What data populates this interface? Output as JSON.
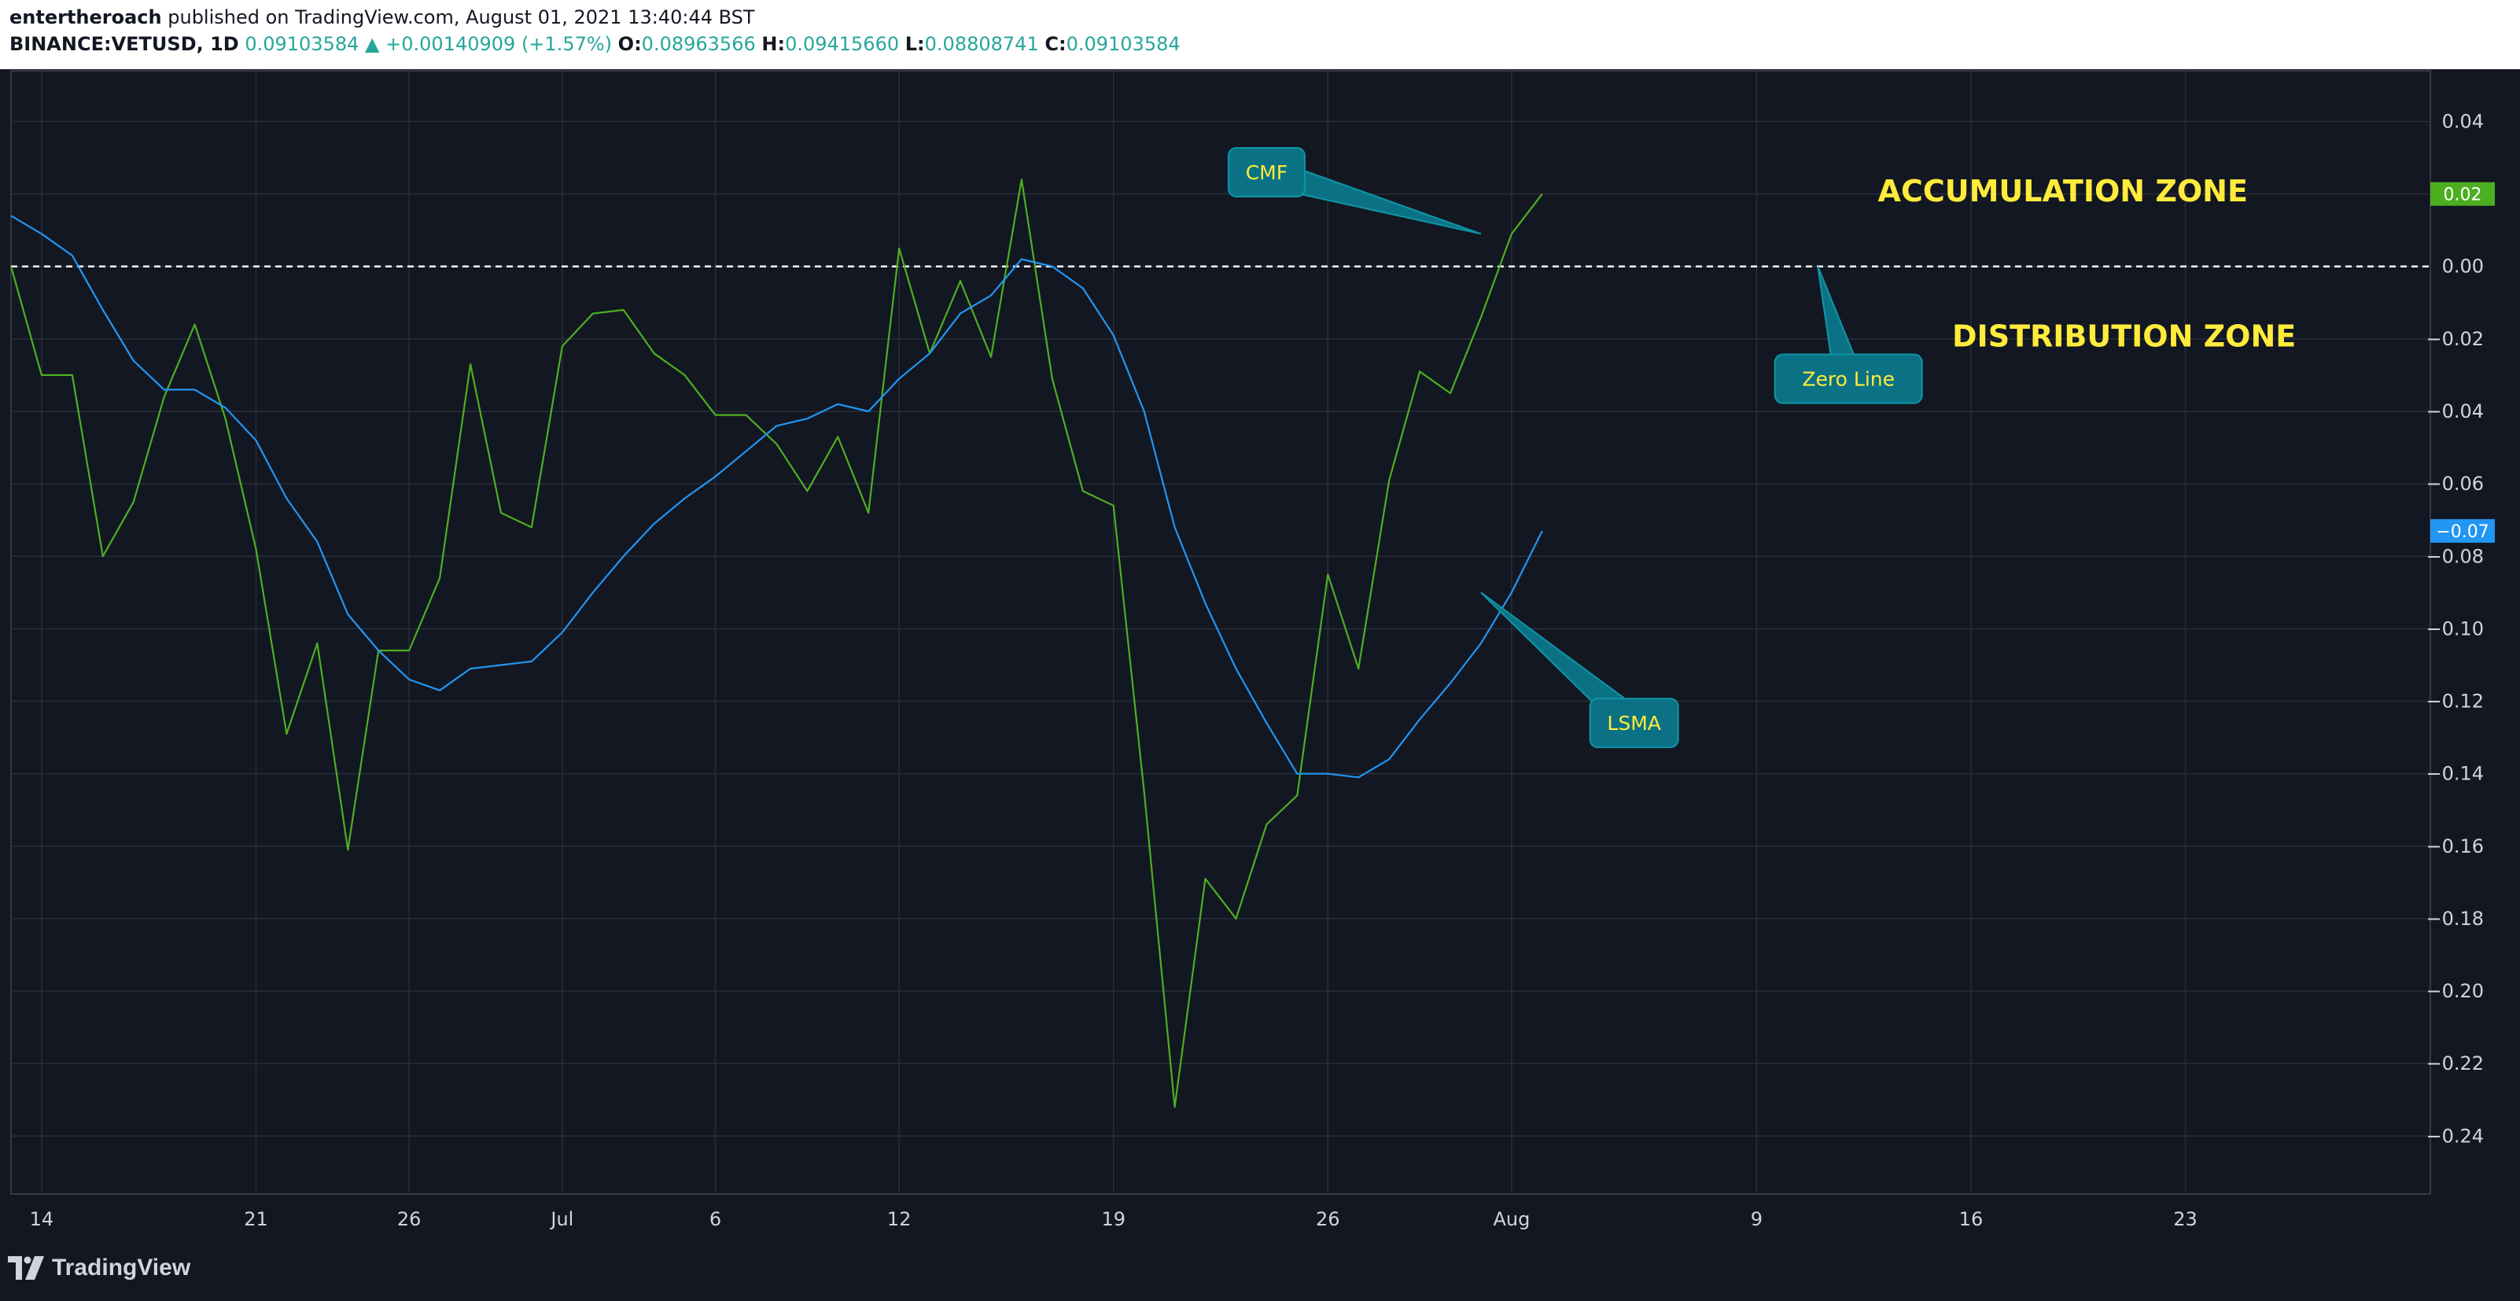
{
  "header": {
    "author": "entertheroach",
    "published_text": " published on TradingView.com, August 01, 2021 13:40:44 BST",
    "symbol": "BINANCE:VETUSD, 1D",
    "last": "0.09103584",
    "change_arrow": "▲",
    "change": "+0.00140909 (+1.57%)",
    "open_label": "O:",
    "open": "0.08963566",
    "high_label": "H:",
    "high": "0.09415660",
    "low_label": "L:",
    "low": "0.08808741",
    "close_label": "C:",
    "close": "0.09103584"
  },
  "footer": {
    "brand": "TradingView"
  },
  "colors": {
    "background": "#131722",
    "grid": "#2a2e39",
    "cmf": "#4caf20",
    "lsma": "#2196f3",
    "zero_line": "#ffffff",
    "callout": "#0b7285",
    "zone_text": "#ffeb3b"
  },
  "chart_data": {
    "type": "line",
    "start_date": "2021-06-13",
    "x_ticks": [
      {
        "date": "2021-06-14",
        "label": "14"
      },
      {
        "date": "2021-06-21",
        "label": "21"
      },
      {
        "date": "2021-06-26",
        "label": "26"
      },
      {
        "date": "2021-07-01",
        "label": "Jul"
      },
      {
        "date": "2021-07-06",
        "label": "6"
      },
      {
        "date": "2021-07-12",
        "label": "12"
      },
      {
        "date": "2021-07-19",
        "label": "19"
      },
      {
        "date": "2021-07-26",
        "label": "26"
      },
      {
        "date": "2021-08-01",
        "label": "Aug"
      },
      {
        "date": "2021-08-09",
        "label": "9"
      },
      {
        "date": "2021-08-16",
        "label": "16"
      },
      {
        "date": "2021-08-23",
        "label": "23"
      }
    ],
    "x_range": [
      "2021-06-13",
      "2021-08-31"
    ],
    "ylim": [
      -0.256,
      0.054
    ],
    "y_ticks": [
      0.04,
      0.02,
      0.0,
      -0.02,
      -0.04,
      -0.06,
      -0.08,
      -0.1,
      -0.12,
      -0.14,
      -0.16,
      -0.18,
      -0.2,
      -0.22,
      -0.24
    ],
    "y_tick_labels": [
      "0.04",
      "0.02",
      "0.00",
      "−0.02",
      "−0.04",
      "−0.06",
      "−0.08",
      "−0.10",
      "−0.12",
      "−0.14",
      "−0.16",
      "−0.18",
      "−0.20",
      "−0.22",
      "−0.24"
    ],
    "grid": true,
    "zero_line": {
      "y": 0,
      "style": "dashed"
    },
    "series": [
      {
        "name": "CMF",
        "color": "#4caf20",
        "last_label": "0.02",
        "values": [
          0.0,
          -0.03,
          -0.03,
          -0.08,
          -0.065,
          -0.036,
          -0.016,
          -0.042,
          -0.078,
          -0.129,
          -0.104,
          -0.161,
          -0.106,
          -0.106,
          -0.086,
          -0.027,
          -0.068,
          -0.072,
          -0.022,
          -0.013,
          -0.012,
          -0.024,
          -0.03,
          -0.041,
          -0.041,
          -0.049,
          -0.062,
          -0.047,
          -0.068,
          0.005,
          -0.024,
          -0.004,
          -0.025,
          0.024,
          -0.031,
          -0.062,
          -0.066,
          -0.145,
          -0.232,
          -0.169,
          -0.18,
          -0.154,
          -0.146,
          -0.085,
          -0.111,
          -0.059,
          -0.029,
          -0.035,
          -0.014,
          0.009,
          0.02
        ]
      },
      {
        "name": "LSMA",
        "color": "#2196f3",
        "last_label": "−0.07",
        "values": [
          0.014,
          0.009,
          0.003,
          -0.012,
          -0.026,
          -0.034,
          -0.034,
          -0.039,
          -0.048,
          -0.064,
          -0.076,
          -0.096,
          -0.106,
          -0.114,
          -0.117,
          -0.111,
          -0.11,
          -0.109,
          -0.101,
          -0.09,
          -0.08,
          -0.071,
          -0.064,
          -0.058,
          -0.051,
          -0.044,
          -0.042,
          -0.038,
          -0.04,
          -0.031,
          -0.024,
          -0.013,
          -0.008,
          0.002,
          0.0,
          -0.006,
          -0.019,
          -0.04,
          -0.072,
          -0.093,
          -0.111,
          -0.126,
          -0.14,
          -0.14,
          -0.141,
          -0.136,
          -0.125,
          -0.115,
          -0.104,
          -0.09,
          -0.073
        ]
      }
    ],
    "annotations": [
      {
        "text": "CMF",
        "type": "callout",
        "date": "2021-07-24",
        "y": 0.026,
        "pointer_date": "2021-07-31",
        "pointer_y": 0.009
      },
      {
        "text": "Zero Line",
        "type": "callout",
        "date": "2021-08-12",
        "y": -0.031,
        "pointer_date": "2021-08-11",
        "pointer_y": 0.0
      },
      {
        "text": "LSMA",
        "type": "callout",
        "date": "2021-08-05",
        "y": -0.126,
        "pointer_date": "2021-07-31",
        "pointer_y": -0.09
      },
      {
        "text": "ACCUMULATION ZONE",
        "type": "text",
        "date": "2021-08-19",
        "y": 0.021
      },
      {
        "text": "DISTRIBUTION ZONE",
        "type": "text",
        "date": "2021-08-21",
        "y": -0.019
      }
    ]
  }
}
